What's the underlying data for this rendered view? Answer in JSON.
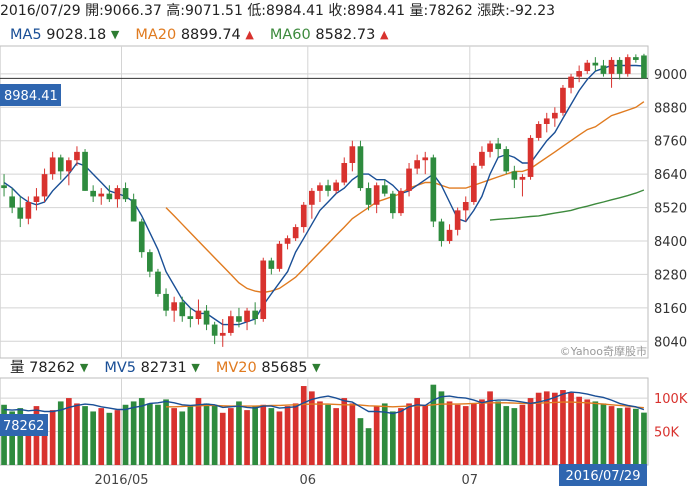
{
  "header": {
    "date": "2016/07/29",
    "open_label": "開:",
    "open": "9066.37",
    "high_label": "高:",
    "high": "9071.51",
    "low_label": "低:",
    "low": "8984.41",
    "close_label": "收:",
    "close": "8984.41",
    "volume_label": "量:",
    "volume": "78262",
    "change_label": "漲跌:",
    "change": "-92.23"
  },
  "ma": {
    "ma5_label": "MA5",
    "ma5": "9028.18",
    "ma5_dir": "▼",
    "ma20_label": "MA20",
    "ma20": "8899.74",
    "ma20_dir": "▲",
    "ma60_label": "MA60",
    "ma60": "8582.73",
    "ma60_dir": "▲"
  },
  "volume_info": {
    "vol_label": "量",
    "vol": "78262",
    "vol_dir": "▼",
    "mv5_label": "MV5",
    "mv5": "82731",
    "mv5_dir": "▼",
    "mv20_label": "MV20",
    "mv20": "85685",
    "mv20_dir": "▼"
  },
  "price_tag": "8984.41",
  "volume_tag": "78262",
  "date_tag": "2016/07/29",
  "watermark": "©Yahoo奇摩股市",
  "colors": {
    "up": "#d8322e",
    "down": "#2e8b3e",
    "ma5": "#1a4f96",
    "ma20": "#e07b20",
    "ma60": "#3d8a3d",
    "tag_bg": "#2f66b0",
    "grid": "#d4d4d4"
  },
  "chart_data": {
    "type": "candlestick",
    "y_ticks": [
      "9000",
      "8880",
      "8760",
      "8640",
      "8520",
      "8400",
      "8280",
      "8160",
      "8040"
    ],
    "y_tick_values": [
      9000,
      8880,
      8760,
      8640,
      8520,
      8400,
      8280,
      8160,
      8040
    ],
    "ylim": [
      7980,
      9100
    ],
    "x_ticks": [
      {
        "label": "2016/05",
        "index": 15
      },
      {
        "label": "06",
        "index": 38
      },
      {
        "label": "07",
        "index": 58
      }
    ],
    "volume_ticks": [
      "100K",
      "50K"
    ],
    "volume_tick_values": [
      100000,
      50000
    ],
    "volume_ylim": [
      0,
      130000
    ],
    "candles": [
      [
        8600,
        8640,
        8560,
        8590
      ],
      [
        8560,
        8590,
        8500,
        8520
      ],
      [
        8520,
        8560,
        8450,
        8480
      ],
      [
        8480,
        8560,
        8460,
        8540
      ],
      [
        8540,
        8590,
        8510,
        8560
      ],
      [
        8560,
        8660,
        8540,
        8640
      ],
      [
        8640,
        8720,
        8620,
        8700
      ],
      [
        8700,
        8710,
        8620,
        8650
      ],
      [
        8650,
        8700,
        8600,
        8690
      ],
      [
        8690,
        8740,
        8670,
        8720
      ],
      [
        8720,
        8730,
        8580,
        8580
      ],
      [
        8580,
        8600,
        8540,
        8560
      ],
      [
        8560,
        8590,
        8530,
        8570
      ],
      [
        8570,
        8600,
        8540,
        8550
      ],
      [
        8550,
        8600,
        8520,
        8590
      ],
      [
        8590,
        8610,
        8540,
        8550
      ],
      [
        8550,
        8570,
        8470,
        8470
      ],
      [
        8470,
        8480,
        8340,
        8360
      ],
      [
        8360,
        8370,
        8270,
        8290
      ],
      [
        8290,
        8300,
        8200,
        8210
      ],
      [
        8210,
        8230,
        8130,
        8150
      ],
      [
        8150,
        8200,
        8110,
        8180
      ],
      [
        8180,
        8200,
        8110,
        8130
      ],
      [
        8130,
        8160,
        8090,
        8120
      ],
      [
        8120,
        8190,
        8100,
        8150
      ],
      [
        8150,
        8170,
        8080,
        8100
      ],
      [
        8100,
        8110,
        8030,
        8060
      ],
      [
        8060,
        8120,
        8020,
        8070
      ],
      [
        8070,
        8150,
        8060,
        8130
      ],
      [
        8130,
        8160,
        8090,
        8110
      ],
      [
        8110,
        8160,
        8080,
        8150
      ],
      [
        8150,
        8180,
        8100,
        8120
      ],
      [
        8120,
        8340,
        8110,
        8330
      ],
      [
        8330,
        8340,
        8280,
        8300
      ],
      [
        8300,
        8400,
        8290,
        8390
      ],
      [
        8390,
        8420,
        8370,
        8410
      ],
      [
        8410,
        8460,
        8400,
        8450
      ],
      [
        8450,
        8540,
        8430,
        8530
      ],
      [
        8530,
        8590,
        8480,
        8580
      ],
      [
        8580,
        8610,
        8540,
        8600
      ],
      [
        8600,
        8620,
        8560,
        8580
      ],
      [
        8580,
        8620,
        8570,
        8610
      ],
      [
        8610,
        8700,
        8600,
        8680
      ],
      [
        8680,
        8760,
        8650,
        8740
      ],
      [
        8740,
        8760,
        8580,
        8590
      ],
      [
        8590,
        8610,
        8510,
        8530
      ],
      [
        8530,
        8610,
        8500,
        8600
      ],
      [
        8600,
        8620,
        8560,
        8570
      ],
      [
        8570,
        8580,
        8480,
        8500
      ],
      [
        8500,
        8590,
        8490,
        8580
      ],
      [
        8580,
        8680,
        8560,
        8660
      ],
      [
        8660,
        8710,
        8640,
        8690
      ],
      [
        8690,
        8720,
        8640,
        8700
      ],
      [
        8700,
        8710,
        8450,
        8470
      ],
      [
        8470,
        8480,
        8380,
        8400
      ],
      [
        8400,
        8460,
        8390,
        8440
      ],
      [
        8440,
        8520,
        8420,
        8510
      ],
      [
        8510,
        8560,
        8470,
        8540
      ],
      [
        8540,
        8680,
        8530,
        8670
      ],
      [
        8670,
        8740,
        8660,
        8720
      ],
      [
        8720,
        8760,
        8700,
        8750
      ],
      [
        8750,
        8770,
        8700,
        8730
      ],
      [
        8730,
        8740,
        8640,
        8650
      ],
      [
        8650,
        8670,
        8590,
        8620
      ],
      [
        8620,
        8640,
        8560,
        8630
      ],
      [
        8630,
        8780,
        8620,
        8770
      ],
      [
        8770,
        8830,
        8760,
        8820
      ],
      [
        8820,
        8860,
        8790,
        8840
      ],
      [
        8840,
        8880,
        8810,
        8860
      ],
      [
        8860,
        8960,
        8850,
        8950
      ],
      [
        8950,
        9000,
        8930,
        8990
      ],
      [
        8990,
        9030,
        8970,
        9010
      ],
      [
        9010,
        9050,
        9000,
        9040
      ],
      [
        9040,
        9060,
        9010,
        9030
      ],
      [
        9030,
        9050,
        8990,
        9000
      ],
      [
        9000,
        9060,
        8950,
        9050
      ],
      [
        9050,
        9060,
        8980,
        9000
      ],
      [
        9000,
        9070,
        8990,
        9060
      ],
      [
        9060,
        9070,
        9040,
        9050
      ],
      [
        9066,
        9072,
        8984,
        8984
      ]
    ],
    "ma5": [
      8610,
      8590,
      8560,
      8540,
      8530,
      8540,
      8580,
      8610,
      8640,
      8680,
      8670,
      8640,
      8610,
      8580,
      8570,
      8560,
      8540,
      8490,
      8430,
      8370,
      8290,
      8240,
      8190,
      8160,
      8140,
      8140,
      8120,
      8100,
      8100,
      8100,
      8110,
      8120,
      8170,
      8210,
      8250,
      8290,
      8360,
      8410,
      8460,
      8510,
      8540,
      8570,
      8590,
      8620,
      8640,
      8640,
      8620,
      8620,
      8600,
      8570,
      8580,
      8600,
      8620,
      8640,
      8600,
      8540,
      8480,
      8470,
      8510,
      8560,
      8640,
      8700,
      8710,
      8700,
      8680,
      8680,
      8720,
      8760,
      8790,
      8840,
      8890,
      8940,
      8980,
      9010,
      9020,
      9030,
      9030,
      9030,
      9030,
      9028
    ],
    "ma20": [
      null,
      null,
      null,
      null,
      null,
      null,
      null,
      null,
      null,
      null,
      null,
      null,
      null,
      null,
      null,
      null,
      null,
      null,
      null,
      null,
      8520,
      8490,
      8460,
      8430,
      8400,
      8370,
      8340,
      8310,
      8280,
      8250,
      8230,
      8220,
      8215,
      8220,
      8230,
      8250,
      8270,
      8300,
      8330,
      8360,
      8390,
      8420,
      8450,
      8480,
      8500,
      8520,
      8540,
      8550,
      8560,
      8570,
      8590,
      8600,
      8610,
      8610,
      8600,
      8590,
      8590,
      8590,
      8600,
      8610,
      8620,
      8630,
      8640,
      8650,
      8650,
      8660,
      8680,
      8700,
      8720,
      8740,
      8760,
      8780,
      8800,
      8810,
      8830,
      8850,
      8860,
      8870,
      8880,
      8900
    ],
    "ma60": [
      null,
      null,
      null,
      null,
      null,
      null,
      null,
      null,
      null,
      null,
      null,
      null,
      null,
      null,
      null,
      null,
      null,
      null,
      null,
      null,
      null,
      null,
      null,
      null,
      null,
      null,
      null,
      null,
      null,
      null,
      null,
      null,
      null,
      null,
      null,
      null,
      null,
      null,
      null,
      null,
      null,
      null,
      null,
      null,
      null,
      null,
      null,
      null,
      null,
      null,
      null,
      null,
      null,
      null,
      null,
      null,
      null,
      null,
      null,
      null,
      8475,
      8478,
      8480,
      8482,
      8485,
      8488,
      8490,
      8495,
      8500,
      8505,
      8510,
      8518,
      8525,
      8533,
      8540,
      8548,
      8555,
      8563,
      8572,
      8583
    ],
    "volume": [
      90000,
      80000,
      85000,
      70000,
      88000,
      75000,
      82000,
      95000,
      100000,
      92000,
      88000,
      80000,
      85000,
      78000,
      82000,
      90000,
      95000,
      100000,
      92000,
      90000,
      98000,
      85000,
      80000,
      88000,
      100000,
      92000,
      90000,
      78000,
      85000,
      95000,
      82000,
      88000,
      90000,
      85000,
      80000,
      88000,
      92000,
      118000,
      110000,
      95000,
      90000,
      85000,
      100000,
      92000,
      70000,
      55000,
      88000,
      92000,
      80000,
      85000,
      92000,
      100000,
      90000,
      120000,
      110000,
      95000,
      90000,
      88000,
      92000,
      98000,
      110000,
      95000,
      88000,
      85000,
      90000,
      100000,
      108000,
      110000,
      108000,
      112000,
      108000,
      102000,
      98000,
      95000,
      92000,
      88000,
      85000,
      86000,
      84000,
      78262
    ],
    "mv5": [
      83000,
      82000,
      83000,
      81000,
      82000,
      80000,
      80000,
      82000,
      86000,
      89000,
      91000,
      90000,
      87000,
      85000,
      83000,
      83000,
      86000,
      88000,
      92000,
      93000,
      95000,
      93000,
      90000,
      89000,
      90000,
      91000,
      90000,
      86000,
      87000,
      88000,
      86000,
      85000,
      88000,
      88000,
      85000,
      86000,
      87000,
      93000,
      98000,
      101000,
      103000,
      100000,
      96000,
      94000,
      87000,
      80000,
      80000,
      79000,
      77000,
      80000,
      87000,
      90000,
      89000,
      97000,
      102000,
      103000,
      101000,
      100000,
      97000,
      93000,
      96000,
      97000,
      97000,
      96000,
      94000,
      92000,
      94000,
      97000,
      101000,
      106000,
      109000,
      108000,
      106000,
      103000,
      101000,
      97000,
      92000,
      89000,
      87000,
      82731
    ],
    "mv20": [
      null,
      null,
      null,
      null,
      null,
      null,
      null,
      null,
      null,
      null,
      null,
      null,
      null,
      null,
      null,
      null,
      null,
      null,
      null,
      null,
      87000,
      87000,
      87500,
      88000,
      88500,
      89000,
      89000,
      88500,
      88000,
      88000,
      88000,
      88000,
      88500,
      89000,
      89000,
      89500,
      90000,
      90500,
      91000,
      91000,
      91000,
      90500,
      90000,
      90000,
      89500,
      88500,
      88000,
      87500,
      87000,
      87500,
      88000,
      88500,
      89000,
      90000,
      91000,
      91000,
      91000,
      91500,
      92000,
      92500,
      93000,
      93000,
      93000,
      92500,
      92000,
      92000,
      92500,
      93000,
      93500,
      94000,
      94000,
      93500,
      93000,
      92000,
      91000,
      90000,
      89000,
      88000,
      86500,
      85685
    ]
  }
}
